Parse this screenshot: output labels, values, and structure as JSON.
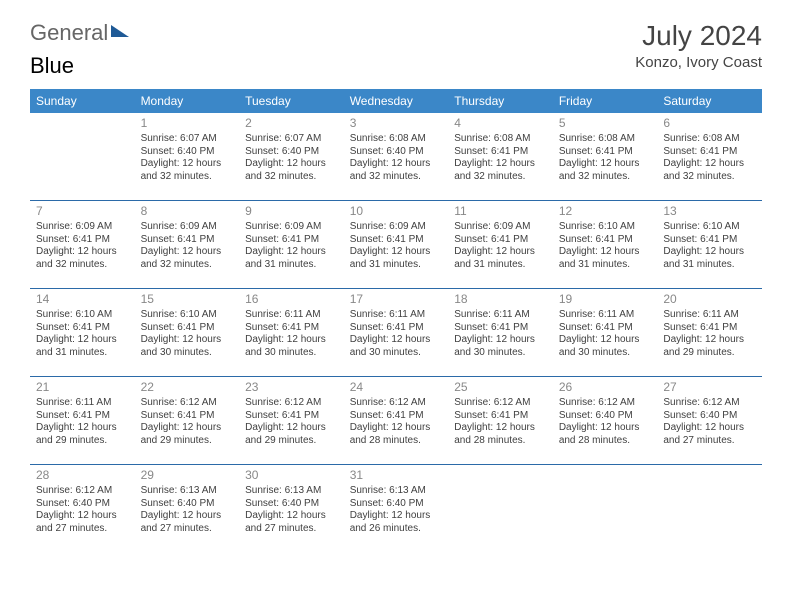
{
  "branding": {
    "word1": "General",
    "word2": "Blue",
    "logo_color": "#1f5a96",
    "text_color1": "#666666",
    "text_color2": "#3b87c8"
  },
  "header": {
    "title": "July 2024",
    "location": "Konzo, Ivory Coast"
  },
  "style": {
    "header_bg": "#3b87c8",
    "header_text": "#ffffff",
    "cell_border": "#2b6aa8",
    "daynum_color": "#888888",
    "body_text": "#404040"
  },
  "weekdays": [
    "Sunday",
    "Monday",
    "Tuesday",
    "Wednesday",
    "Thursday",
    "Friday",
    "Saturday"
  ],
  "weeks": [
    [
      null,
      {
        "n": "1",
        "sr": "6:07 AM",
        "ss": "6:40 PM",
        "dl": "12 hours and 32 minutes."
      },
      {
        "n": "2",
        "sr": "6:07 AM",
        "ss": "6:40 PM",
        "dl": "12 hours and 32 minutes."
      },
      {
        "n": "3",
        "sr": "6:08 AM",
        "ss": "6:40 PM",
        "dl": "12 hours and 32 minutes."
      },
      {
        "n": "4",
        "sr": "6:08 AM",
        "ss": "6:41 PM",
        "dl": "12 hours and 32 minutes."
      },
      {
        "n": "5",
        "sr": "6:08 AM",
        "ss": "6:41 PM",
        "dl": "12 hours and 32 minutes."
      },
      {
        "n": "6",
        "sr": "6:08 AM",
        "ss": "6:41 PM",
        "dl": "12 hours and 32 minutes."
      }
    ],
    [
      {
        "n": "7",
        "sr": "6:09 AM",
        "ss": "6:41 PM",
        "dl": "12 hours and 32 minutes."
      },
      {
        "n": "8",
        "sr": "6:09 AM",
        "ss": "6:41 PM",
        "dl": "12 hours and 32 minutes."
      },
      {
        "n": "9",
        "sr": "6:09 AM",
        "ss": "6:41 PM",
        "dl": "12 hours and 31 minutes."
      },
      {
        "n": "10",
        "sr": "6:09 AM",
        "ss": "6:41 PM",
        "dl": "12 hours and 31 minutes."
      },
      {
        "n": "11",
        "sr": "6:09 AM",
        "ss": "6:41 PM",
        "dl": "12 hours and 31 minutes."
      },
      {
        "n": "12",
        "sr": "6:10 AM",
        "ss": "6:41 PM",
        "dl": "12 hours and 31 minutes."
      },
      {
        "n": "13",
        "sr": "6:10 AM",
        "ss": "6:41 PM",
        "dl": "12 hours and 31 minutes."
      }
    ],
    [
      {
        "n": "14",
        "sr": "6:10 AM",
        "ss": "6:41 PM",
        "dl": "12 hours and 31 minutes."
      },
      {
        "n": "15",
        "sr": "6:10 AM",
        "ss": "6:41 PM",
        "dl": "12 hours and 30 minutes."
      },
      {
        "n": "16",
        "sr": "6:11 AM",
        "ss": "6:41 PM",
        "dl": "12 hours and 30 minutes."
      },
      {
        "n": "17",
        "sr": "6:11 AM",
        "ss": "6:41 PM",
        "dl": "12 hours and 30 minutes."
      },
      {
        "n": "18",
        "sr": "6:11 AM",
        "ss": "6:41 PM",
        "dl": "12 hours and 30 minutes."
      },
      {
        "n": "19",
        "sr": "6:11 AM",
        "ss": "6:41 PM",
        "dl": "12 hours and 30 minutes."
      },
      {
        "n": "20",
        "sr": "6:11 AM",
        "ss": "6:41 PM",
        "dl": "12 hours and 29 minutes."
      }
    ],
    [
      {
        "n": "21",
        "sr": "6:11 AM",
        "ss": "6:41 PM",
        "dl": "12 hours and 29 minutes."
      },
      {
        "n": "22",
        "sr": "6:12 AM",
        "ss": "6:41 PM",
        "dl": "12 hours and 29 minutes."
      },
      {
        "n": "23",
        "sr": "6:12 AM",
        "ss": "6:41 PM",
        "dl": "12 hours and 29 minutes."
      },
      {
        "n": "24",
        "sr": "6:12 AM",
        "ss": "6:41 PM",
        "dl": "12 hours and 28 minutes."
      },
      {
        "n": "25",
        "sr": "6:12 AM",
        "ss": "6:41 PM",
        "dl": "12 hours and 28 minutes."
      },
      {
        "n": "26",
        "sr": "6:12 AM",
        "ss": "6:40 PM",
        "dl": "12 hours and 28 minutes."
      },
      {
        "n": "27",
        "sr": "6:12 AM",
        "ss": "6:40 PM",
        "dl": "12 hours and 27 minutes."
      }
    ],
    [
      {
        "n": "28",
        "sr": "6:12 AM",
        "ss": "6:40 PM",
        "dl": "12 hours and 27 minutes."
      },
      {
        "n": "29",
        "sr": "6:13 AM",
        "ss": "6:40 PM",
        "dl": "12 hours and 27 minutes."
      },
      {
        "n": "30",
        "sr": "6:13 AM",
        "ss": "6:40 PM",
        "dl": "12 hours and 27 minutes."
      },
      {
        "n": "31",
        "sr": "6:13 AM",
        "ss": "6:40 PM",
        "dl": "12 hours and 26 minutes."
      },
      null,
      null,
      null
    ]
  ],
  "labels": {
    "sunrise": "Sunrise:",
    "sunset": "Sunset:",
    "daylight": "Daylight:"
  }
}
